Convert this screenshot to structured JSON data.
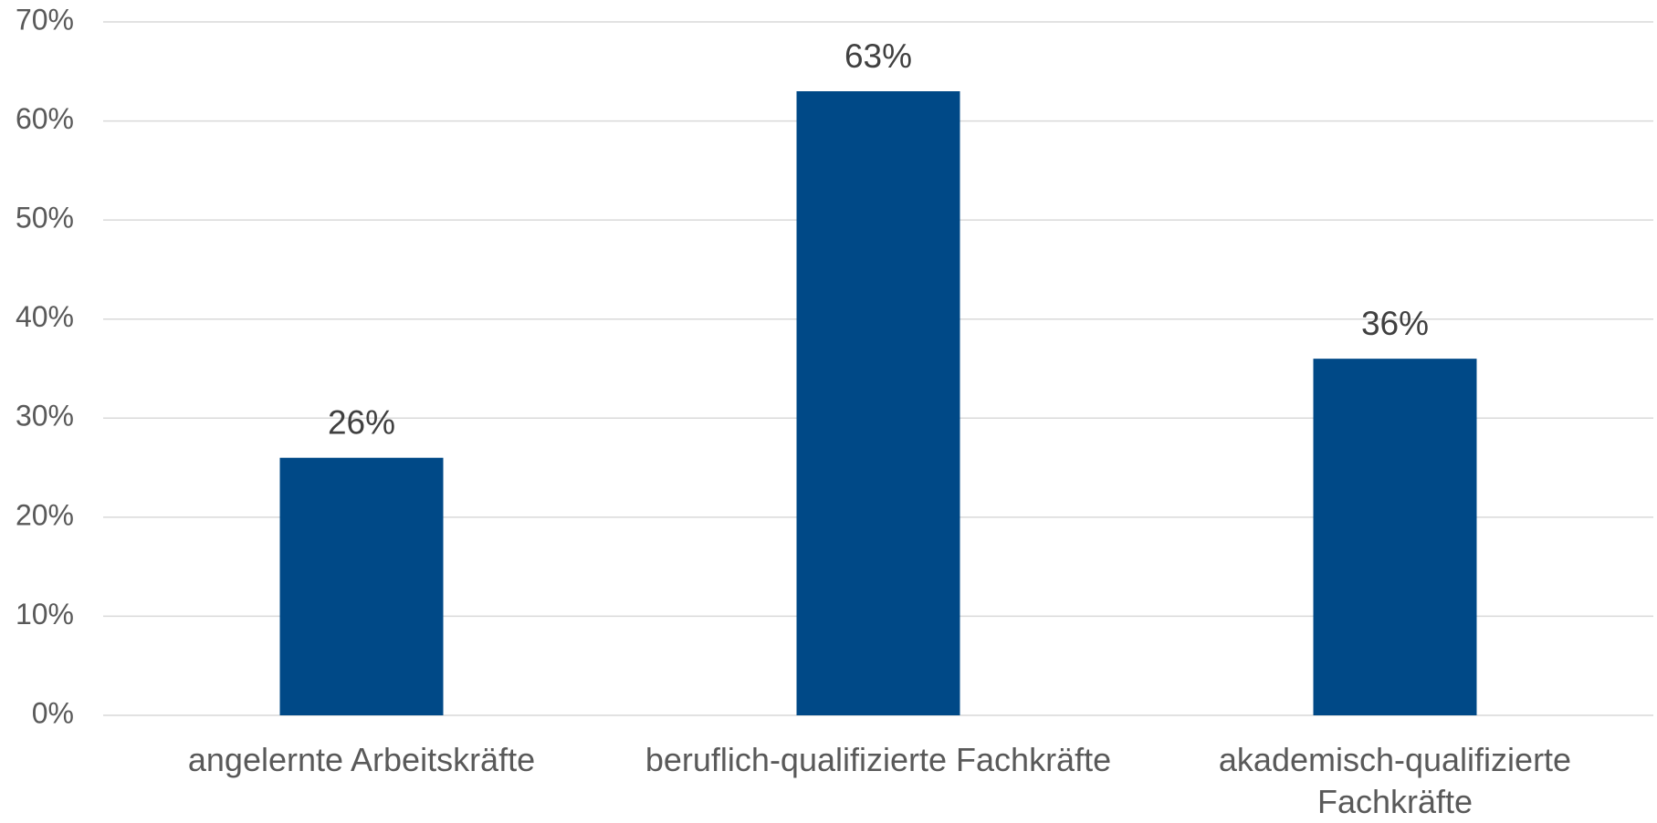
{
  "chart_data": {
    "type": "bar",
    "categories": [
      "angelernte Arbeitskräfte",
      "beruflich-qualifizierte Fachkräfte",
      "akademisch-qualifizierte Fachkräfte"
    ],
    "values": [
      26,
      63,
      36
    ],
    "value_labels": [
      "26%",
      "63%",
      "36%"
    ],
    "color": "#004987",
    "ylim": [
      0,
      70
    ],
    "yticks": [
      {
        "value": 0,
        "label": "0%"
      },
      {
        "value": 10,
        "label": "10%"
      },
      {
        "value": 20,
        "label": "20%"
      },
      {
        "value": 30,
        "label": "30%"
      },
      {
        "value": 40,
        "label": "40%"
      },
      {
        "value": 50,
        "label": "50%"
      },
      {
        "value": 60,
        "label": "60%"
      },
      {
        "value": 70,
        "label": "70%"
      }
    ],
    "grid": true
  }
}
